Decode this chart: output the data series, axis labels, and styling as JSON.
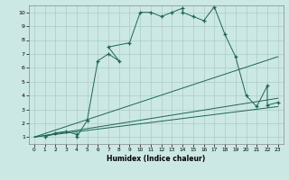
{
  "xlabel": "Humidex (Indice chaleur)",
  "bg_color": "#cce8e4",
  "grid_color": "#aaccc8",
  "line_color": "#1a6655",
  "xlim": [
    -0.5,
    23.5
  ],
  "ylim": [
    0.5,
    10.5
  ],
  "xticks": [
    0,
    1,
    2,
    3,
    4,
    5,
    6,
    7,
    8,
    9,
    10,
    11,
    12,
    13,
    14,
    15,
    16,
    17,
    18,
    19,
    20,
    21,
    22,
    23
  ],
  "yticks": [
    1,
    2,
    3,
    4,
    5,
    6,
    7,
    8,
    9,
    10
  ],
  "series1_x": [
    1,
    2,
    3,
    4,
    4,
    5,
    6,
    7,
    8,
    7,
    9,
    10,
    11,
    12,
    13,
    14,
    14,
    15,
    16,
    17,
    18,
    19,
    20,
    21,
    22,
    22,
    23
  ],
  "series1_y": [
    1,
    1.3,
    1.4,
    1.2,
    1.0,
    2.2,
    6.5,
    7.0,
    6.5,
    7.5,
    7.8,
    10,
    10,
    9.7,
    10,
    10.3,
    10,
    9.7,
    9.4,
    10.4,
    8.4,
    6.8,
    4.0,
    3.2,
    4.7,
    3.3,
    3.5
  ],
  "series2_x": [
    0,
    23
  ],
  "series2_y": [
    1,
    6.8
  ],
  "series3_x": [
    0,
    23
  ],
  "series3_y": [
    1,
    3.8
  ],
  "series4_x": [
    0,
    23
  ],
  "series4_y": [
    1,
    3.2
  ]
}
